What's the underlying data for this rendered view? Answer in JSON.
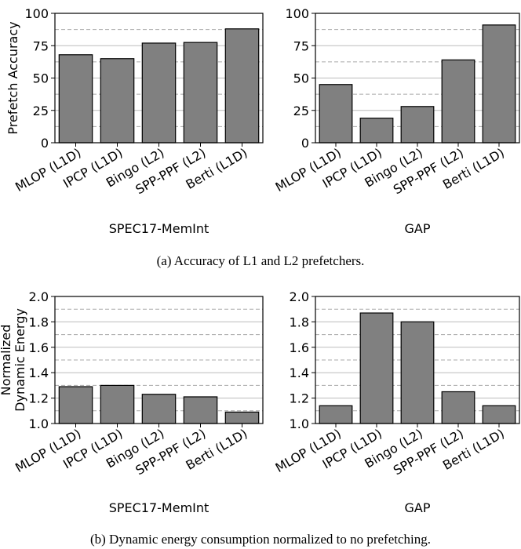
{
  "chart_data": [
    {
      "type": "bar",
      "ylabel": [
        "Prefetch Accuracy"
      ],
      "xlabel": "SPEC17-MemInt",
      "categories": [
        "MLOP (L1D)",
        "IPCP (L1D)",
        "Bingo (L2)",
        "SPP-PPF (L2)",
        "Berti (L1D)"
      ],
      "values": [
        68,
        65,
        77,
        77.5,
        88
      ],
      "color": "#808080",
      "ylim": [
        0,
        100
      ],
      "yticks": [
        0,
        25,
        50,
        75,
        100
      ],
      "grid": true,
      "minor_grid": [
        12.5,
        37.5,
        62.5,
        87.5
      ]
    },
    {
      "type": "bar",
      "xlabel": "GAP",
      "categories": [
        "MLOP (L1D)",
        "IPCP (L1D)",
        "Bingo (L2)",
        "SPP-PPF (L2)",
        "Berti (L1D)"
      ],
      "values": [
        45,
        19,
        28,
        64,
        91
      ],
      "color": "#808080",
      "ylim": [
        0,
        100
      ],
      "yticks": [
        0,
        25,
        50,
        75,
        100
      ],
      "grid": true,
      "minor_grid": [
        12.5,
        37.5,
        62.5,
        87.5
      ]
    },
    {
      "type": "bar",
      "ylabel": [
        "Normalized",
        "Dynamic Energy"
      ],
      "xlabel": "SPEC17-MemInt",
      "categories": [
        "MLOP (L1D)",
        "IPCP (L1D)",
        "Bingo (L2)",
        "SPP-PPF (L2)",
        "Berti (L1D)"
      ],
      "values": [
        1.29,
        1.3,
        1.23,
        1.21,
        1.09
      ],
      "color": "#808080",
      "ylim": [
        1,
        2
      ],
      "yticks": [
        {
          "value": 1,
          "label": "1.0"
        },
        {
          "value": 1.2,
          "label": "1.2"
        },
        {
          "value": 1.4,
          "label": "1.4"
        },
        {
          "value": 1.6,
          "label": "1.6"
        },
        {
          "value": 1.8,
          "label": "1.8"
        },
        {
          "value": 2,
          "label": "2.0"
        }
      ],
      "grid": true,
      "minor_grid": [
        1.1,
        1.3,
        1.5,
        1.7,
        1.9
      ]
    },
    {
      "type": "bar",
      "xlabel": "GAP",
      "categories": [
        "MLOP (L1D)",
        "IPCP (L1D)",
        "Bingo (L2)",
        "SPP-PPF (L2)",
        "Berti (L1D)"
      ],
      "values": [
        1.14,
        1.87,
        1.8,
        1.25,
        1.14
      ],
      "color": "#808080",
      "ylim": [
        1,
        2
      ],
      "yticks": [
        {
          "value": 1,
          "label": "1.0"
        },
        {
          "value": 1.2,
          "label": "1.2"
        },
        {
          "value": 1.4,
          "label": "1.4"
        },
        {
          "value": 1.6,
          "label": "1.6"
        },
        {
          "value": 1.8,
          "label": "1.8"
        },
        {
          "value": 2,
          "label": "2.0"
        }
      ],
      "grid": true,
      "minor_grid": [
        1.1,
        1.3,
        1.5,
        1.7,
        1.9
      ]
    }
  ],
  "captions": [
    "(a) Accuracy of L1 and L2 prefetchers.",
    "(b) Dynamic energy consumption normalized to no prefetching."
  ]
}
